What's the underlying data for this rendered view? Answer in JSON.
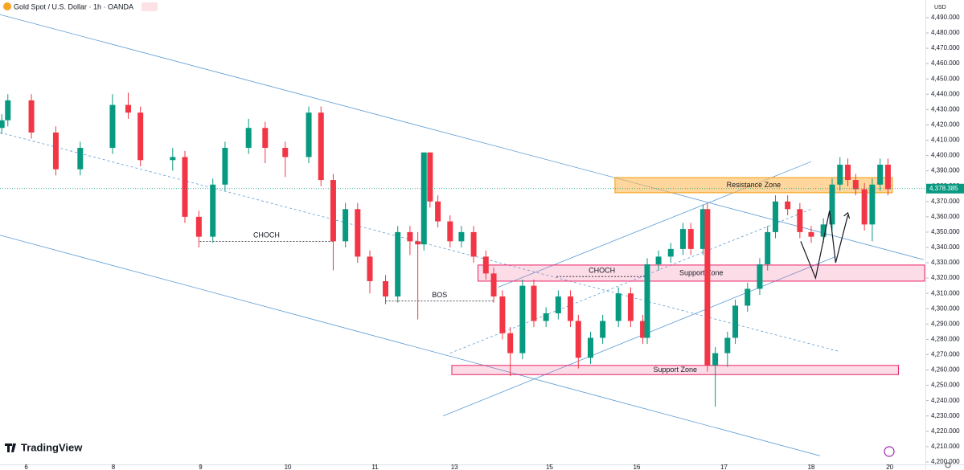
{
  "chart_data": {
    "type": "candlestick",
    "title": "Gold Spot / U.S. Dollar · 1h · OANDA",
    "currency": "USD",
    "brand": "TradingView",
    "up_color": "#089981",
    "down_color": "#f23645",
    "x": [
      -0.28,
      -0.21,
      0.06,
      0.34,
      0.62,
      0.99,
      1.17,
      1.31,
      1.68,
      1.82,
      1.98,
      2.14,
      2.28,
      2.55,
      2.74,
      2.97,
      3.24,
      3.38,
      3.52,
      3.66,
      3.8,
      3.94,
      4.12,
      4.26,
      4.4,
      4.49,
      4.56,
      4.63,
      4.72,
      4.86,
      4.99,
      5.13,
      5.27,
      5.36,
      5.46,
      5.55,
      5.69,
      5.82,
      5.96,
      6.1,
      6.24,
      6.33,
      6.47,
      6.61,
      6.79,
      6.93,
      7.07,
      7.12,
      7.25,
      7.39,
      7.53,
      7.62,
      7.76,
      7.81,
      7.9,
      8.04,
      8.13,
      8.27,
      8.41,
      8.5,
      8.59,
      8.73,
      8.87,
      9.0,
      9.14,
      9.24,
      9.33,
      9.42,
      9.51,
      9.61,
      9.7,
      9.79,
      9.88
    ],
    "open": [
      4418,
      4423,
      4436,
      4415,
      4391,
      4405,
      4433,
      4428,
      4397,
      4399,
      4360,
      4347,
      4381,
      4405,
      4418,
      4405,
      4399,
      4428,
      4384,
      4344,
      4365,
      4334,
      4318,
      4308,
      4350,
      4344,
      4342,
      4402,
      4370,
      4357,
      4344,
      4350,
      4334,
      4323,
      4308,
      4284,
      4271,
      4315,
      4292,
      4297,
      4308,
      4292,
      4268,
      4281,
      4292,
      4310,
      4292,
      4281,
      4329,
      4334,
      4339,
      4352,
      4339,
      4365,
      4263,
      4271,
      4281,
      4302,
      4313,
      4329,
      4350,
      4370,
      4365,
      4350,
      4347,
      4355,
      4381,
      4394,
      4384,
      4378,
      4355,
      4381,
      4394
    ],
    "high": [
      4427,
      4440,
      4440,
      4419,
      4409,
      4440,
      4441,
      4432,
      4405,
      4403,
      4364,
      4385,
      4409,
      4424,
      4422,
      4409,
      4432,
      4432,
      4388,
      4369,
      4369,
      4338,
      4322,
      4354,
      4354,
      4350,
      4402,
      4402,
      4374,
      4361,
      4354,
      4354,
      4338,
      4327,
      4312,
      4288,
      4319,
      4319,
      4301,
      4312,
      4312,
      4296,
      4285,
      4296,
      4314,
      4314,
      4296,
      4333,
      4338,
      4343,
      4356,
      4356,
      4368,
      4369,
      4275,
      4285,
      4306,
      4317,
      4333,
      4354,
      4374,
      4374,
      4369,
      4354,
      4359,
      4385,
      4399,
      4398,
      4388,
      4382,
      4385,
      4398,
      4398
    ],
    "low": [
      4414,
      4419,
      4411,
      4387,
      4387,
      4401,
      4424,
      4393,
      4390,
      4356,
      4340,
      4343,
      4377,
      4401,
      4395,
      4386,
      4395,
      4380,
      4325,
      4340,
      4330,
      4310,
      4303,
      4304,
      4335,
      4293,
      4338,
      4366,
      4353,
      4340,
      4340,
      4330,
      4319,
      4304,
      4280,
      4256,
      4267,
      4288,
      4288,
      4293,
      4288,
      4261,
      4264,
      4277,
      4288,
      4288,
      4277,
      4277,
      4325,
      4330,
      4335,
      4335,
      4335,
      4259,
      4236,
      4262,
      4277,
      4298,
      4309,
      4325,
      4346,
      4361,
      4346,
      4343,
      4343,
      4351,
      4377,
      4380,
      4374,
      4351,
      4344,
      4377,
      4374
    ],
    "close": [
      4423,
      4436,
      4415,
      4391,
      4405,
      4433,
      4428,
      4397,
      4399,
      4360,
      4347,
      4381,
      4405,
      4418,
      4405,
      4399,
      4428,
      4384,
      4344,
      4365,
      4334,
      4318,
      4308,
      4350,
      4344,
      4342,
      4402,
      4370,
      4357,
      4344,
      4350,
      4334,
      4323,
      4308,
      4284,
      4271,
      4315,
      4292,
      4297,
      4308,
      4292,
      4268,
      4281,
      4292,
      4310,
      4292,
      4281,
      4329,
      4334,
      4339,
      4352,
      4339,
      4365,
      4263,
      4271,
      4281,
      4302,
      4313,
      4329,
      4350,
      4370,
      4365,
      4350,
      4347,
      4355,
      4381,
      4394,
      4384,
      4378,
      4355,
      4381,
      4394,
      4378
    ],
    "xlim": [
      -0.3,
      10.3
    ],
    "ylim": [
      4198.4,
      4501.5
    ],
    "xticks": [
      {
        "value": 0,
        "label": "6"
      },
      {
        "value": 1,
        "label": "8"
      },
      {
        "value": 2,
        "label": "9"
      },
      {
        "value": 3,
        "label": "10"
      },
      {
        "value": 4,
        "label": "11"
      },
      {
        "value": 4.91,
        "label": "13"
      },
      {
        "value": 6,
        "label": "15"
      },
      {
        "value": 7,
        "label": "16"
      },
      {
        "value": 8,
        "label": "17"
      },
      {
        "value": 9,
        "label": "18"
      },
      {
        "value": 9.9,
        "label": "20"
      }
    ],
    "yticks": [
      {
        "value": 4200,
        "label": "4,200.000"
      },
      {
        "value": 4210,
        "label": "4,210.000"
      },
      {
        "value": 4220,
        "label": "4,220.000"
      },
      {
        "value": 4230,
        "label": "4,230.000"
      },
      {
        "value": 4240,
        "label": "4,240.000"
      },
      {
        "value": 4250,
        "label": "4,250.000"
      },
      {
        "value": 4260,
        "label": "4,260.000"
      },
      {
        "value": 4270,
        "label": "4,270.000"
      },
      {
        "value": 4280,
        "label": "4,280.000"
      },
      {
        "value": 4290,
        "label": "4,290.000"
      },
      {
        "value": 4300,
        "label": "4,300.000"
      },
      {
        "value": 4310,
        "label": "4,310.000"
      },
      {
        "value": 4320,
        "label": "4,320.000"
      },
      {
        "value": 4330,
        "label": "4,330.000"
      },
      {
        "value": 4340,
        "label": "4,340.000"
      },
      {
        "value": 4350,
        "label": "4,350.000"
      },
      {
        "value": 4360,
        "label": "4,360.000"
      },
      {
        "value": 4370,
        "label": "4,370.000"
      },
      {
        "value": 4380,
        "label": "4,380.000"
      },
      {
        "value": 4390,
        "label": "4,390.000"
      },
      {
        "value": 4400,
        "label": "4,400.000"
      },
      {
        "value": 4410,
        "label": "4,410.000"
      },
      {
        "value": 4420,
        "label": "4,420.000"
      },
      {
        "value": 4430,
        "label": "4,430.000"
      },
      {
        "value": 4440,
        "label": "4,440.000"
      },
      {
        "value": 4450,
        "label": "4,450.000"
      },
      {
        "value": 4460,
        "label": "4,460.000"
      },
      {
        "value": 4470,
        "label": "4,470.000"
      },
      {
        "value": 4480,
        "label": "4,480.000"
      },
      {
        "value": 4490,
        "label": "4,490.000"
      }
    ],
    "last_price": {
      "value": 4378.385,
      "label": "4,378.385"
    },
    "trendlines": [
      {
        "x": [
          -0.3,
          10.29
        ],
        "y": [
          4492,
          4332
        ],
        "style": "solid"
      },
      {
        "x": [
          -0.3,
          9.1
        ],
        "y": [
          4348,
          4204
        ],
        "style": "solid"
      },
      {
        "x": [
          -0.3,
          9.33
        ],
        "y": [
          4415,
          4272
        ],
        "style": "dashed"
      },
      {
        "x": [
          4.78,
          9.28
        ],
        "y": [
          4230,
          4334
        ],
        "style": "solid"
      },
      {
        "x": [
          5.41,
          9.0
        ],
        "y": [
          4314,
          4396
        ],
        "style": "solid"
      },
      {
        "x": [
          4.86,
          9.0
        ],
        "y": [
          4271,
          4365
        ],
        "style": "dashed"
      }
    ],
    "zones": [
      {
        "label": "Resistance Zone",
        "kind": "resistance",
        "x": [
          6.75,
          9.93
        ],
        "y": [
          4375.7,
          4385.6
        ]
      },
      {
        "label": "Support Zone",
        "kind": "support",
        "x": [
          5.18,
          10.3
        ],
        "y": [
          4318,
          4328.5
        ]
      },
      {
        "label": "Support Zone",
        "kind": "support",
        "x": [
          4.88,
          10.0
        ],
        "y": [
          4257,
          4263
        ]
      }
    ],
    "levels": [
      {
        "label": "CHOCH",
        "x": [
          1.99,
          3.52
        ],
        "y": 4344
      },
      {
        "label": "BOS",
        "x": [
          4.12,
          5.36
        ],
        "y": 4305
      },
      {
        "label": "CHOCH",
        "x": [
          6.08,
          7.12
        ],
        "y": 4321
      }
    ],
    "projection": {
      "x": [
        8.88,
        9.05,
        9.21,
        9.28,
        9.42
      ],
      "y": [
        4344,
        4320,
        4364,
        4330,
        4361
      ]
    }
  }
}
